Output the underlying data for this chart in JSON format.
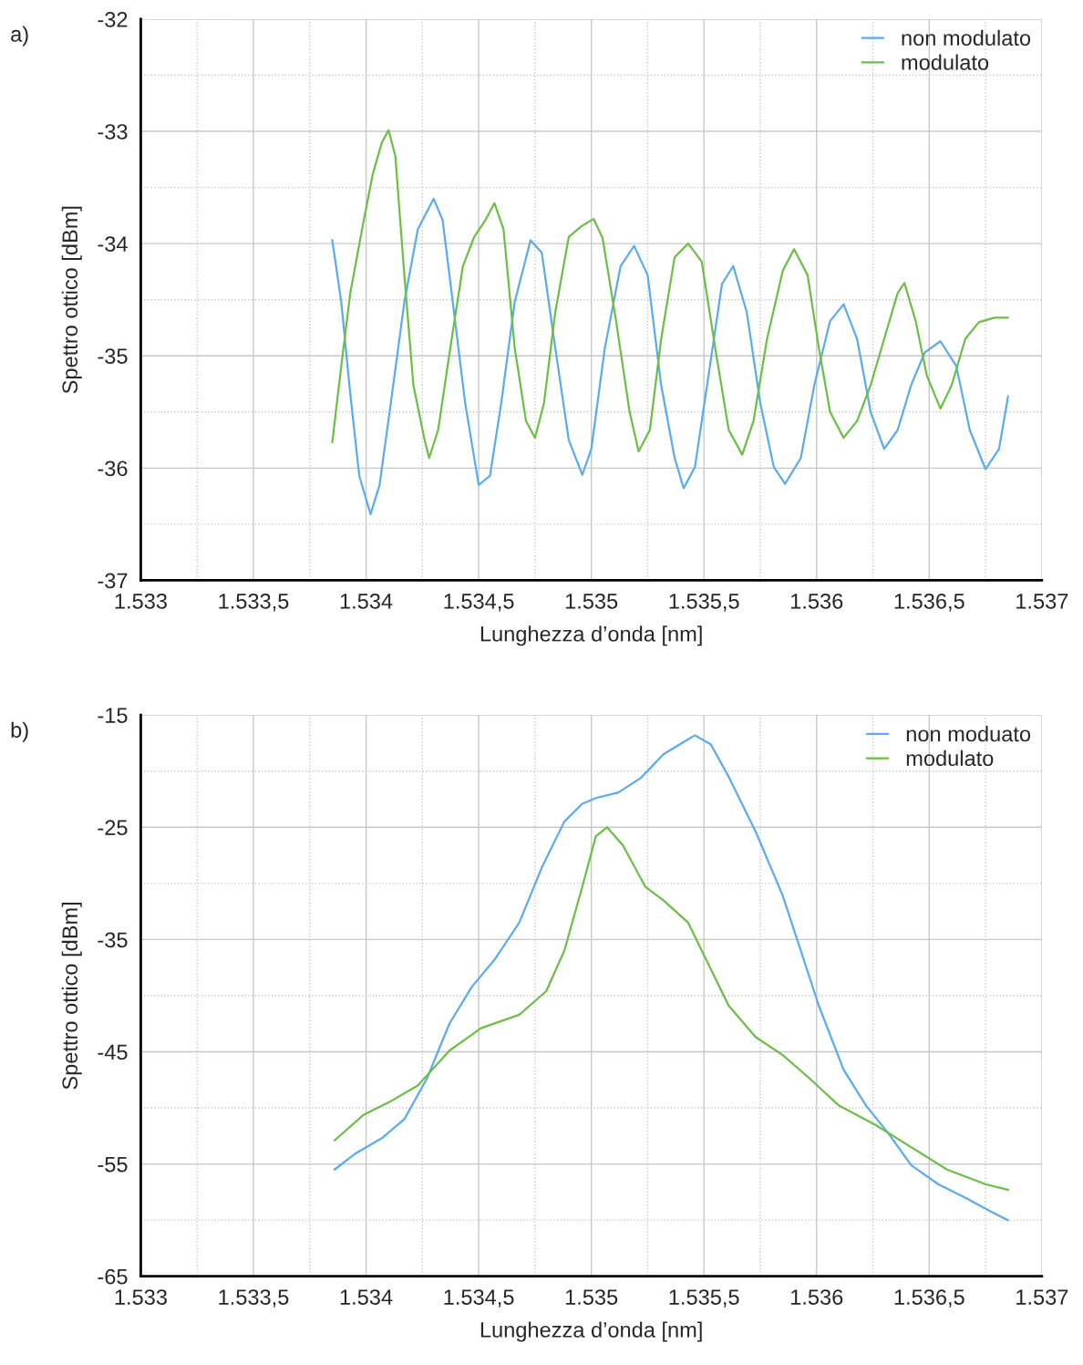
{
  "chart_data": [
    {
      "type": "line",
      "xlabel": "Lunghezza d’onda [nm]",
      "ylabel": "Spettro ottico [dBm]",
      "annotations": [
        "a)"
      ],
      "legend": "top right",
      "grid": true,
      "xlim": [
        1533,
        1537
      ],
      "ylim": [
        -37,
        -32
      ],
      "xticks": [
        {
          "value": 1533,
          "label": "1.533"
        },
        {
          "value": 1533.25,
          "label": null
        },
        {
          "value": 1533.5,
          "label": "1.533,5"
        },
        {
          "value": 1533.75,
          "label": null
        },
        {
          "value": 1534,
          "label": "1.534"
        },
        {
          "value": 1534.25,
          "label": null
        },
        {
          "value": 1534.5,
          "label": "1.534,5"
        },
        {
          "value": 1534.75,
          "label": null
        },
        {
          "value": 1535,
          "label": "1.535"
        },
        {
          "value": 1535.25,
          "label": null
        },
        {
          "value": 1535.5,
          "label": "1.535,5"
        },
        {
          "value": 1535.75,
          "label": null
        },
        {
          "value": 1536,
          "label": "1.536"
        },
        {
          "value": 1536.25,
          "label": null
        },
        {
          "value": 1536.5,
          "label": "1.536,5"
        },
        {
          "value": 1536.75,
          "label": null
        },
        {
          "value": 1537,
          "label": "1.537"
        }
      ],
      "yticks": [
        -37,
        {
          "value": -36.5,
          "label": null
        },
        -36,
        {
          "value": -35.5,
          "label": null
        },
        -35,
        {
          "value": -34.5,
          "label": null
        },
        -34,
        {
          "value": -33.5,
          "label": null
        },
        -33,
        {
          "value": -32.5,
          "label": null
        },
        -32
      ],
      "series": [
        {
          "name": "non modulato",
          "color": "#5aabf0",
          "x": [
            1533.85,
            1533.89,
            1533.93,
            1533.97,
            1534.02,
            1534.06,
            1534.11,
            1534.17,
            1534.23,
            1534.3,
            1534.34,
            1534.38,
            1534.44,
            1534.5,
            1534.55,
            1534.6,
            1534.66,
            1534.73,
            1534.78,
            1534.84,
            1534.9,
            1534.96,
            1535.0,
            1535.06,
            1535.13,
            1535.19,
            1535.25,
            1535.31,
            1535.37,
            1535.41,
            1535.46,
            1535.52,
            1535.58,
            1535.63,
            1535.69,
            1535.75,
            1535.81,
            1535.86,
            1535.93,
            1535.99,
            1536.06,
            1536.12,
            1536.18,
            1536.24,
            1536.3,
            1536.36,
            1536.42,
            1536.48,
            1536.55,
            1536.62,
            1536.68,
            1536.75,
            1536.81,
            1536.85
          ],
          "values": [
            -33.97,
            -34.52,
            -35.34,
            -36.07,
            -36.41,
            -36.15,
            -35.42,
            -34.52,
            -33.87,
            -33.6,
            -33.79,
            -34.44,
            -35.42,
            -36.15,
            -36.07,
            -35.42,
            -34.52,
            -33.97,
            -34.08,
            -34.93,
            -35.75,
            -36.06,
            -35.83,
            -34.93,
            -34.2,
            -34.02,
            -34.28,
            -35.26,
            -35.91,
            -36.18,
            -35.99,
            -35.18,
            -34.36,
            -34.2,
            -34.61,
            -35.42,
            -35.99,
            -36.14,
            -35.91,
            -35.26,
            -34.69,
            -34.54,
            -34.85,
            -35.5,
            -35.83,
            -35.66,
            -35.26,
            -34.97,
            -34.87,
            -35.09,
            -35.66,
            -36.01,
            -35.83,
            -35.36
          ]
        },
        {
          "name": "modulato",
          "color": "#6cbf45",
          "x": [
            1533.85,
            1533.89,
            1533.93,
            1533.99,
            1534.03,
            1534.07,
            1534.1,
            1534.13,
            1534.17,
            1534.21,
            1534.26,
            1534.28,
            1534.32,
            1534.38,
            1534.43,
            1534.48,
            1534.53,
            1534.57,
            1534.61,
            1534.66,
            1534.71,
            1534.75,
            1534.79,
            1534.84,
            1534.9,
            1534.96,
            1535.01,
            1535.05,
            1535.11,
            1535.17,
            1535.21,
            1535.26,
            1535.31,
            1535.37,
            1535.43,
            1535.49,
            1535.55,
            1535.61,
            1535.67,
            1535.72,
            1535.78,
            1535.85,
            1535.9,
            1535.96,
            1536.01,
            1536.06,
            1536.12,
            1536.18,
            1536.24,
            1536.3,
            1536.36,
            1536.39,
            1536.44,
            1536.49,
            1536.55,
            1536.6,
            1536.66,
            1536.72,
            1536.79,
            1536.85
          ],
          "values": [
            -35.77,
            -35.09,
            -34.44,
            -33.79,
            -33.38,
            -33.1,
            -32.99,
            -33.22,
            -34.28,
            -35.26,
            -35.75,
            -35.91,
            -35.66,
            -34.85,
            -34.2,
            -33.94,
            -33.79,
            -33.64,
            -33.87,
            -34.93,
            -35.58,
            -35.73,
            -35.42,
            -34.61,
            -33.94,
            -33.84,
            -33.78,
            -33.95,
            -34.69,
            -35.5,
            -35.85,
            -35.66,
            -34.85,
            -34.12,
            -34.0,
            -34.16,
            -34.93,
            -35.66,
            -35.88,
            -35.58,
            -34.85,
            -34.24,
            -34.05,
            -34.28,
            -34.93,
            -35.5,
            -35.73,
            -35.58,
            -35.26,
            -34.85,
            -34.44,
            -34.35,
            -34.69,
            -35.18,
            -35.47,
            -35.26,
            -34.85,
            -34.7,
            -34.66,
            -34.66
          ]
        }
      ]
    },
    {
      "type": "line",
      "xlabel": "Lunghezza d’onda [nm]",
      "ylabel": "Spettro ottico [dBm]",
      "annotations": [
        "b)"
      ],
      "legend": "top right",
      "grid": true,
      "xlim": [
        1533,
        1537
      ],
      "ylim": [
        -65,
        -15
      ],
      "xticks": [
        {
          "value": 1533,
          "label": "1.533"
        },
        {
          "value": 1533.25,
          "label": null
        },
        {
          "value": 1533.5,
          "label": "1.533,5"
        },
        {
          "value": 1533.75,
          "label": null
        },
        {
          "value": 1534,
          "label": "1.534"
        },
        {
          "value": 1534.25,
          "label": null
        },
        {
          "value": 1534.5,
          "label": "1.534,5"
        },
        {
          "value": 1534.75,
          "label": null
        },
        {
          "value": 1535,
          "label": "1.535"
        },
        {
          "value": 1535.25,
          "label": null
        },
        {
          "value": 1535.5,
          "label": "1.535,5"
        },
        {
          "value": 1535.75,
          "label": null
        },
        {
          "value": 1536,
          "label": "1.536"
        },
        {
          "value": 1536.25,
          "label": null
        },
        {
          "value": 1536.5,
          "label": "1.536,5"
        },
        {
          "value": 1536.75,
          "label": null
        },
        {
          "value": 1537,
          "label": "1.537"
        }
      ],
      "yticks": [
        -65,
        {
          "value": -60,
          "label": null
        },
        -55,
        {
          "value": -50,
          "label": null
        },
        -45,
        {
          "value": -40,
          "label": null
        },
        -35,
        {
          "value": -30,
          "label": null
        },
        -25,
        {
          "value": -20,
          "label": null
        },
        -15
      ],
      "series": [
        {
          "name": "non moduato",
          "color": "#5aabf0",
          "x": [
            1533.86,
            1533.95,
            1534.07,
            1534.17,
            1534.27,
            1534.37,
            1534.47,
            1534.57,
            1534.68,
            1534.78,
            1534.88,
            1534.96,
            1535.02,
            1535.12,
            1535.22,
            1535.32,
            1535.41,
            1535.46,
            1535.53,
            1535.61,
            1535.73,
            1535.85,
            1535.93,
            1536.01,
            1536.12,
            1536.22,
            1536.32,
            1536.42,
            1536.54,
            1536.66,
            1536.77,
            1536.85
          ],
          "values": [
            -55.5,
            -54.1,
            -52.7,
            -51.0,
            -47.4,
            -42.5,
            -39.2,
            -36.8,
            -33.5,
            -28.6,
            -24.5,
            -22.9,
            -22.4,
            -21.9,
            -20.6,
            -18.5,
            -17.4,
            -16.8,
            -17.6,
            -20.5,
            -25.4,
            -31.1,
            -36.0,
            -40.9,
            -46.6,
            -49.8,
            -52.3,
            -55.1,
            -56.8,
            -58.0,
            -59.2,
            -60.0
          ]
        },
        {
          "name": "modulato",
          "color": "#6cbf45",
          "x": [
            1533.86,
            1533.99,
            1534.11,
            1534.23,
            1534.37,
            1534.51,
            1534.68,
            1534.8,
            1534.88,
            1534.96,
            1535.02,
            1535.07,
            1535.14,
            1535.24,
            1535.32,
            1535.43,
            1535.51,
            1535.61,
            1535.73,
            1535.85,
            1535.97,
            1536.1,
            1536.26,
            1536.42,
            1536.58,
            1536.75,
            1536.85
          ],
          "values": [
            -52.9,
            -50.6,
            -49.4,
            -48.0,
            -44.9,
            -42.9,
            -41.7,
            -39.6,
            -36.0,
            -30.3,
            -25.8,
            -25.0,
            -26.6,
            -30.3,
            -31.5,
            -33.5,
            -36.8,
            -40.9,
            -43.7,
            -45.3,
            -47.4,
            -49.8,
            -51.5,
            -53.5,
            -55.5,
            -56.8,
            -57.3
          ]
        }
      ]
    }
  ]
}
